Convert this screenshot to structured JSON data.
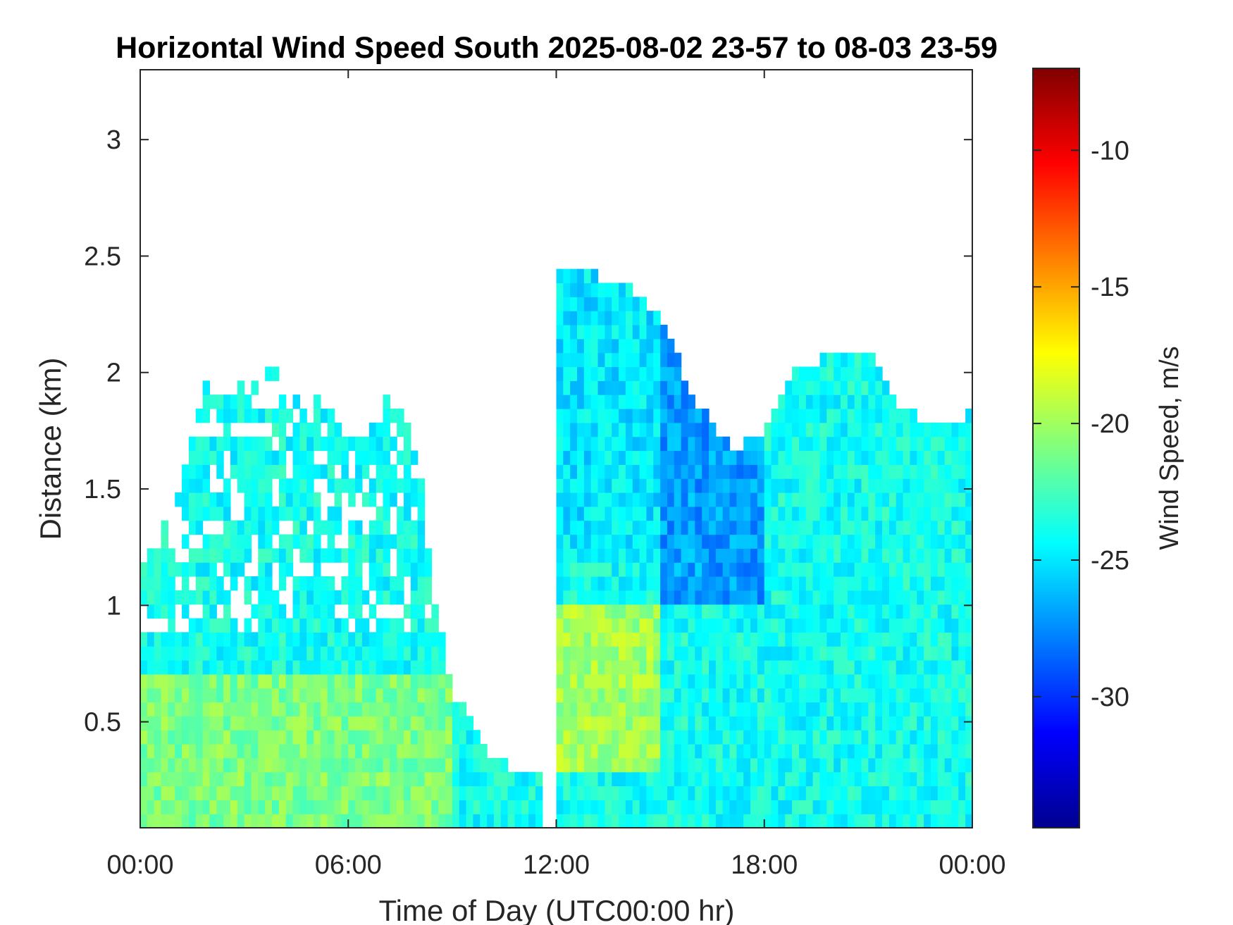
{
  "chart_data": {
    "type": "heatmap",
    "title": "Horizontal Wind Speed South 2025-08-02 23-57 to 08-03 23-59",
    "xlabel": "Time of Day (UTC00:00 hr)",
    "ylabel": "Distance (km)",
    "colorbar_label": "Wind Speed, m/s",
    "colormap": "jet",
    "x_ticks": [
      {
        "value": 0,
        "label": "00:00"
      },
      {
        "value": 6,
        "label": "06:00"
      },
      {
        "value": 12,
        "label": "12:00"
      },
      {
        "value": 18,
        "label": "18:00"
      },
      {
        "value": 24,
        "label": "00:00"
      }
    ],
    "y_ticks": [
      {
        "value": 0.5,
        "label": "0.5"
      },
      {
        "value": 1.0,
        "label": "1"
      },
      {
        "value": 1.5,
        "label": "1.5"
      },
      {
        "value": 2.0,
        "label": "2"
      },
      {
        "value": 2.5,
        "label": "2.5"
      },
      {
        "value": 3.0,
        "label": "3"
      }
    ],
    "colorbar_ticks": [
      {
        "value": -10,
        "label": "-10"
      },
      {
        "value": -15,
        "label": "-15"
      },
      {
        "value": -20,
        "label": "-20"
      },
      {
        "value": -25,
        "label": "-25"
      },
      {
        "value": -30,
        "label": "-30"
      }
    ],
    "xlim": [
      0,
      24
    ],
    "ylim": [
      0.045,
      3.3
    ],
    "clim": [
      -34.8,
      -7.0
    ],
    "grid": false,
    "colorbar_position": "right",
    "coverage_top_km": [
      {
        "t": 0.0,
        "top": 1.1
      },
      {
        "t": 1.0,
        "top": 1.4
      },
      {
        "t": 2.0,
        "top": 2.0
      },
      {
        "t": 3.0,
        "top": 1.9
      },
      {
        "t": 4.0,
        "top": 2.0
      },
      {
        "t": 5.0,
        "top": 1.9
      },
      {
        "t": 6.0,
        "top": 1.7
      },
      {
        "t": 7.0,
        "top": 1.9
      },
      {
        "t": 8.0,
        "top": 1.7
      },
      {
        "t": 8.5,
        "top": 1.0
      },
      {
        "t": 9.0,
        "top": 0.6
      },
      {
        "t": 10.0,
        "top": 0.35
      },
      {
        "t": 11.0,
        "top": 0.25
      },
      {
        "t": 11.5,
        "top": 0.0
      },
      {
        "t": 12.0,
        "top": 2.4
      },
      {
        "t": 13.0,
        "top": 2.4
      },
      {
        "t": 14.0,
        "top": 2.35
      },
      {
        "t": 15.0,
        "top": 2.2
      },
      {
        "t": 16.0,
        "top": 1.85
      },
      {
        "t": 17.0,
        "top": 1.65
      },
      {
        "t": 18.0,
        "top": 1.7
      },
      {
        "t": 19.0,
        "top": 2.0
      },
      {
        "t": 20.0,
        "top": 2.05
      },
      {
        "t": 21.0,
        "top": 2.05
      },
      {
        "t": 22.0,
        "top": 1.8
      },
      {
        "t": 23.0,
        "top": 1.75
      },
      {
        "t": 24.0,
        "top": 1.8
      }
    ],
    "typical_speed_m_s": [
      {
        "region": "00:00-06:00 below 0.7 km",
        "value": -21
      },
      {
        "region": "00:00-09:00 above 1 km",
        "value": -24
      },
      {
        "region": "12:00-15:00 0.3-1.0 km",
        "value": -20
      },
      {
        "region": "12:00-15:00 above 1.2 km",
        "value": -25
      },
      {
        "region": "15:00-18:00 1.0-1.8 km",
        "value": -27
      },
      {
        "region": "18:00-24:00 below 1.8 km",
        "value": -24
      }
    ]
  }
}
